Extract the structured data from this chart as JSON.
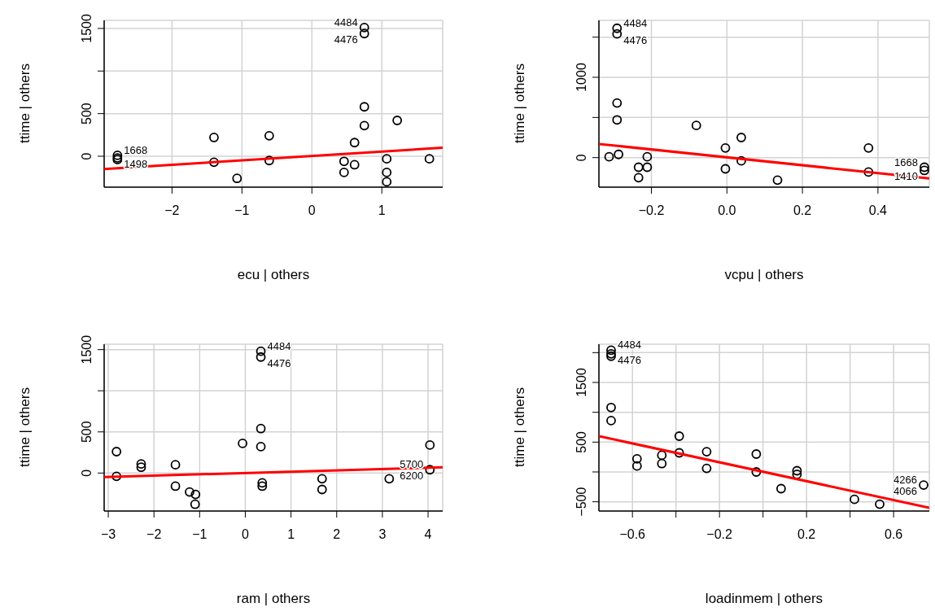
{
  "chart_data": [
    {
      "type": "scatter",
      "xlabel": "ecu | others",
      "ylabel": "ttime | others",
      "grid": true,
      "marker": "circle",
      "xlim": [
        -2.97,
        1.87
      ],
      "ylim": [
        -363,
        1595
      ],
      "xticks": [
        -2,
        -1,
        0,
        1
      ],
      "yticks": [
        0,
        500,
        {
          "value": 1000,
          "label": null
        },
        1500
      ],
      "series": [
        {
          "type": "scatter",
          "color": "#000000",
          "x": [
            -2.78,
            -2.78,
            -2.78,
            -1.4,
            -1.4,
            -1.07,
            -0.61,
            -0.61,
            0.46,
            0.46,
            0.61,
            0.61,
            0.75,
            0.75,
            0.75,
            0.75,
            1.07,
            1.07,
            1.07,
            1.22,
            1.68
          ],
          "values": [
            10,
            -20,
            -40,
            220,
            -70,
            -260,
            240,
            -50,
            -60,
            -190,
            160,
            -100,
            1510,
            1440,
            580,
            360,
            -30,
            -190,
            -300,
            420,
            -30
          ]
        },
        {
          "type": "line",
          "color": "#ff0000",
          "marker": "none",
          "x": [
            -2.97,
            1.87
          ],
          "values": [
            -150,
            100
          ]
        }
      ],
      "annotations": [
        {
          "text": "4484",
          "x": 0.75,
          "y": 1510
        },
        {
          "text": "4476",
          "x": 0.75,
          "y": 1440
        },
        {
          "text": "1668",
          "x": -2.78,
          "y": 10
        },
        {
          "text": "1498",
          "x": -2.78,
          "y": -20
        }
      ]
    },
    {
      "type": "scatter",
      "xlabel": "vcpu | others",
      "ylabel": "ttime | others",
      "grid": true,
      "marker": "circle",
      "xlim": [
        -0.339,
        0.536
      ],
      "ylim": [
        -368,
        1709
      ],
      "xticks": [
        -0.2,
        {
          "value": 0,
          "label": "0.0"
        },
        0.2,
        0.4
      ],
      "yticks": [
        0,
        {
          "value": 500,
          "label": null
        },
        1000,
        {
          "value": 1500,
          "label": null
        }
      ],
      "series": [
        {
          "type": "scatter",
          "color": "#000000",
          "x": [
            -0.312,
            -0.287,
            -0.291,
            -0.291,
            -0.291,
            -0.291,
            -0.234,
            -0.234,
            -0.211,
            -0.211,
            -0.081,
            -0.004,
            -0.004,
            0.038,
            0.038,
            0.134,
            0.375,
            0.375,
            0.523,
            0.523
          ],
          "values": [
            10,
            40,
            1540,
            1610,
            680,
            470,
            -120,
            -250,
            10,
            -120,
            400,
            120,
            -140,
            250,
            -40,
            -280,
            120,
            -180,
            -120,
            -160
          ]
        },
        {
          "type": "line",
          "color": "#ff0000",
          "marker": "none",
          "x": [
            -0.339,
            0.536
          ],
          "values": [
            170,
            -260
          ]
        }
      ],
      "annotations": [
        {
          "text": "4484",
          "x": -0.291,
          "y": 1610
        },
        {
          "text": "4476",
          "x": -0.291,
          "y": 1540
        },
        {
          "text": "1668",
          "x": 0.523,
          "y": -120
        },
        {
          "text": "1410",
          "x": 0.523,
          "y": -160
        }
      ]
    },
    {
      "type": "scatter",
      "xlabel": "ram | others",
      "ylabel": "ttime | others",
      "grid": true,
      "marker": "circle",
      "xlim": [
        -3.09,
        4.32
      ],
      "ylim": [
        -462,
        1566
      ],
      "xticks": [
        -3,
        -2,
        -1,
        0,
        1,
        2,
        3,
        4
      ],
      "yticks": [
        0,
        500,
        {
          "value": 1000,
          "label": null
        },
        1500
      ],
      "series": [
        {
          "type": "scatter",
          "color": "#000000",
          "x": [
            -2.82,
            -2.82,
            -2.28,
            -2.28,
            -1.53,
            -1.53,
            -1.22,
            -1.09,
            -1.1,
            -0.06,
            0.34,
            0.34,
            0.34,
            0.34,
            0.37,
            0.37,
            1.68,
            1.68,
            3.15,
            4.04,
            4.04
          ],
          "values": [
            260,
            -40,
            110,
            70,
            100,
            -160,
            -230,
            -260,
            -380,
            360,
            1480,
            1410,
            540,
            320,
            -120,
            -160,
            -70,
            -200,
            -70,
            340,
            40
          ]
        },
        {
          "type": "line",
          "color": "#ff0000",
          "marker": "none",
          "x": [
            -3.09,
            4.32
          ],
          "values": [
            -50,
            70
          ]
        }
      ],
      "annotations": [
        {
          "text": "4484",
          "x": 0.34,
          "y": 1480
        },
        {
          "text": "4476",
          "x": 0.34,
          "y": 1410
        },
        {
          "text": "5700",
          "x": 4.04,
          "y": 40
        },
        {
          "text": "6200",
          "x": 4.04,
          "y": 40
        }
      ]
    },
    {
      "type": "scatter",
      "xlabel": "loadinmem | others",
      "ylabel": "ttime | others",
      "grid": true,
      "marker": "circle",
      "xlim": [
        -0.754,
        0.764
      ],
      "ylim": [
        -655,
        2141
      ],
      "xticks": [
        -0.6,
        {
          "value": -0.4,
          "label": null
        },
        -0.2,
        {
          "value": 0,
          "label": null
        },
        0.2,
        {
          "value": 0.4,
          "label": null
        },
        0.6
      ],
      "yticks": [
        -500,
        {
          "value": 0,
          "label": null
        },
        500,
        {
          "value": 1000,
          "label": null
        },
        1500,
        {
          "value": 2000,
          "label": null
        }
      ],
      "series": [
        {
          "type": "scatter",
          "color": "#000000",
          "x": [
            -0.698,
            -0.698,
            -0.698,
            -0.698,
            -0.698,
            -0.579,
            -0.579,
            -0.465,
            -0.465,
            -0.385,
            -0.385,
            -0.259,
            -0.259,
            -0.031,
            -0.031,
            0.083,
            0.156,
            0.156,
            0.42,
            0.536,
            0.738
          ],
          "values": [
            2040,
            1980,
            1940,
            1080,
            860,
            220,
            100,
            280,
            140,
            600,
            320,
            340,
            60,
            300,
            0,
            -280,
            20,
            -40,
            -460,
            -540,
            -220
          ]
        },
        {
          "type": "line",
          "color": "#ff0000",
          "marker": "none",
          "x": [
            -0.754,
            0.764
          ],
          "values": [
            600,
            -600
          ]
        }
      ],
      "annotations": [
        {
          "text": "4484",
          "x": -0.698,
          "y": 2040
        },
        {
          "text": "4476",
          "x": -0.698,
          "y": 1980
        },
        {
          "text": "4266",
          "x": 0.738,
          "y": -220
        },
        {
          "text": "4066",
          "x": 0.738,
          "y": -220
        }
      ]
    }
  ]
}
